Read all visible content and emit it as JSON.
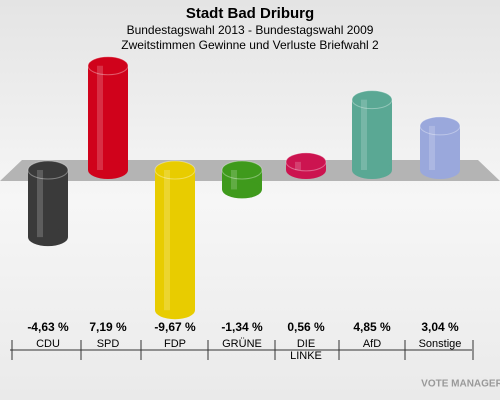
{
  "chart_data": {
    "type": "bar",
    "title": "Stadt Bad Driburg",
    "subtitle": "Bundestagswahl 2013 - Bundestagswahl 2009",
    "subtitle2": "Zweitstimmen Gewinne und Verluste Briefwahl 2",
    "categories": [
      "CDU",
      "SPD",
      "FDP",
      "GRÜNE",
      "DIE LINKE",
      "AfD",
      "Sonstige"
    ],
    "values": [
      -4.63,
      7.19,
      -9.67,
      -1.34,
      0.56,
      4.85,
      3.04
    ],
    "value_labels": [
      "-4,63 %",
      "7,19 %",
      "-9,67 %",
      "-1,34 %",
      "0,56 %",
      "4,85 %",
      "3,04 %"
    ],
    "colors": [
      "#3a3a3a",
      "#d0021b",
      "#e8cc00",
      "#3f9a1c",
      "#cc1450",
      "#5aa894",
      "#9aa8dc"
    ],
    "brand": "VOTE MANAGER"
  }
}
